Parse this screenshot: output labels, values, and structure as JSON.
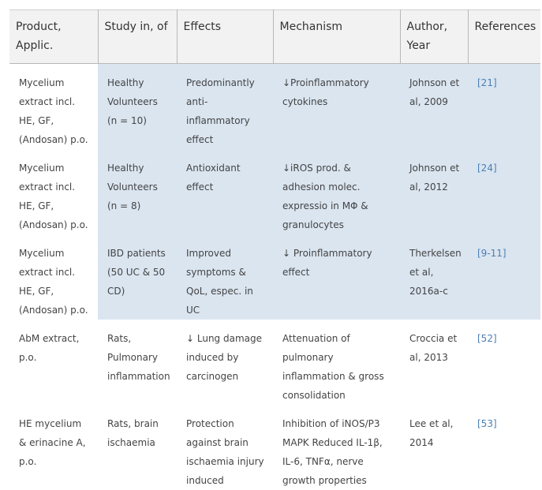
{
  "headers": [
    "Product, Applic.",
    "Study in, of",
    "Effects",
    "Mechanism",
    "Author, Year",
    "References"
  ],
  "rows": [
    [
      "Mycelium extract incl. HE, GF, (Andosan) p.o.",
      "Healthy Volunteers (n = 10)",
      "Predominantly anti-inflammatory effect",
      "↓Proinflammatory cytokines",
      "Johnson et al, 2009",
      "[21]"
    ],
    [
      "Mycelium extract incl. HE, GF, (Andosan) p.o.",
      "Healthy Volunteers (n = 8)",
      "Antioxidant effect",
      "↓iROS prod. & adhesion molec. expressio in MΦ & granulocytes",
      "Johnson et al, 2012",
      "[24]"
    ],
    [
      "Mycelium extract incl. HE, GF, (Andosan) p.o.",
      "IBD patients (50 UC & 50 CD)",
      "Improved symptoms & QoL, espec. in UC",
      "↓ Proinflammatory effect",
      "Therkelsen et al, 2016a-c",
      "[9-11]"
    ],
    [
      "AbM extract, p.o.",
      "Rats, Pulmonary inflammation",
      "↓ Lung damage induced by carcinogen",
      "Attenuation of pulmonary inflammation & gross consolidation",
      "Croccia et al, 2013",
      "[52]"
    ],
    [
      "HE mycelium & erinacine A, p.o.",
      "Rats, brain ischaemia",
      "Protection against brain ischaemia injury induced",
      "Inhibition of iNOS/P3 MAPK Reduced IL-1β, IL-6, TNFα, nerve growth properties",
      "Lee et al, 2014",
      "[53]"
    ]
  ],
  "shaded_rows": 3,
  "colors": {
    "header_bg": "#f2f2f2",
    "shade": "#dae5f0",
    "ref_link": "#4a7fb5"
  }
}
